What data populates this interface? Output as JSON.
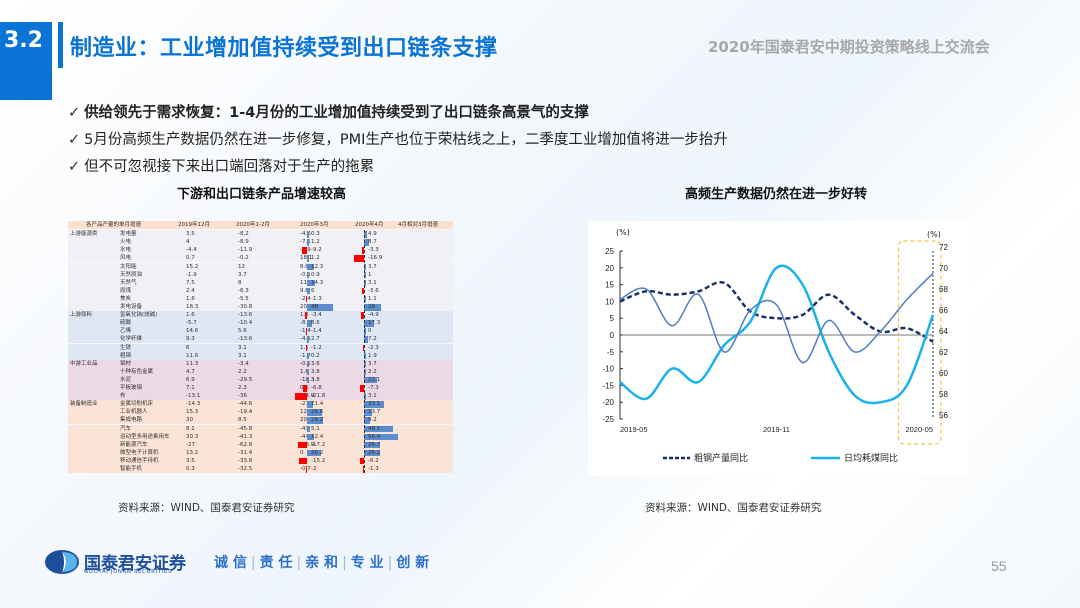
{
  "header": {
    "section_number": "3.2",
    "title": "制造业：工业增加值持续受到出口链条支撑",
    "event": "2020年国泰君安中期投资策略线上交流会"
  },
  "bullets": [
    {
      "check": "✓",
      "text": "供给领先于需求恢复：1-4月份的工业增加值持续受到了出口链条高景气的支撑",
      "bold": true
    },
    {
      "check": "✓",
      "text": "5月份高频生产数据仍然在进一步修复，PMI生产也位于荣枯线之上，二季度工业增加值将进一步抬升",
      "bold": false
    },
    {
      "check": "✓",
      "text": "但不可忽视接下来出口端回落对于生产的拖累",
      "bold": false
    }
  ],
  "left_panel": {
    "title": "下游和出口链条产品增速较高",
    "source": "资料来源：WIND、国泰君安证券研究"
  },
  "right_panel": {
    "title": "高频生产数据仍然在进一步好转",
    "source": "资料来源：WIND、国泰君安证券研究"
  },
  "footer": {
    "logo_cn": "国泰君安证券",
    "logo_en": "GUOTAI JUNAN SECURITIES",
    "slogan": [
      "诚 信",
      "责 任",
      "亲 和",
      "专 业",
      "创 新"
    ],
    "page_number": "55"
  },
  "colors": {
    "brand_blue": "#0a74d6",
    "bar_positive": "#5b8ccc",
    "bar_negative": "#ff0000",
    "steel_line": "#1b2f6b",
    "coal_line": "#19b2ec",
    "pmi_line": "#4a7fc1",
    "highlight_box": "#f5c842"
  },
  "chart_data": [
    {
      "type": "table",
      "title": "下游和出口链条产品增速较高",
      "columns": [
        "各产品产量的单月增速",
        "",
        "2019年12月",
        "2020年1-2月",
        "2020年3月",
        "2020年4月",
        "4月相对3月增速"
      ],
      "groups": [
        {
          "name": "上游能源类",
          "color": "#f0f0f5",
          "rows": [
            [
              "发电量",
              "3.5",
              "-8.2",
              "-4.6",
              "0.3",
              "4.9"
            ],
            [
              "火电",
              "4",
              "-8.9",
              "-7.5",
              "1.2",
              "8.7"
            ],
            [
              "水电",
              "-4.4",
              "-11.9",
              "-5.9",
              "-9.2",
              "-3.3"
            ],
            [
              "风电",
              "0.7",
              "-0.2",
              "18.1",
              "1.2",
              "-16.9"
            ],
            [
              "太阳能",
              "15.2",
              "12",
              "8.6",
              "12.3",
              "3.7"
            ],
            [
              "天然原油",
              "-1.9",
              "3.7",
              "-0.1",
              "0.9",
              "1"
            ],
            [
              "天然气",
              "7.5",
              "8",
              "11.2",
              "14.3",
              "3.1"
            ],
            [
              "原煤",
              "2.4",
              "-6.3",
              "9.6",
              "6",
              "-3.6"
            ],
            [
              "焦炭",
              "1.8",
              "-5.5",
              "-2.4",
              "-1.3",
              "1.1"
            ],
            [
              "发电设备",
              "18.3",
              "-30.8",
              "20",
              "48",
              "28"
            ]
          ]
        },
        {
          "name": "上游原料",
          "color": "#dfe6f4",
          "rows": [
            [
              "氢氧化钠(烧碱)",
              "1.6",
              "-13.6",
              "1.5",
              "-3.4",
              "-4.9"
            ],
            [
              "硫酸",
              "-5.7",
              "-10.4",
              "-8.7",
              "8.6",
              "17.3"
            ],
            [
              "乙烯",
              "14.6",
              "5.6",
              "-1.4",
              "-1.4",
              "0"
            ],
            [
              "化学纤维",
              "9.3",
              "-13.6",
              "-4.5",
              "2.7",
              "7.2"
            ],
            [
              "生铁",
              "6",
              "3.1",
              "1.1",
              "-1.2",
              "-2.3"
            ],
            [
              "粗钢",
              "11.6",
              "3.1",
              "-1.7",
              "0.2",
              "1.9"
            ]
          ]
        },
        {
          "name": "中游工业品",
          "color": "#ecd9e4",
          "rows": [
            [
              "钢材",
              "11.3",
              "-3.4",
              "-0.1",
              "3.6",
              "3.7"
            ],
            [
              "十种有色金属",
              "4.7",
              "2.2",
              "1.6",
              "3.8",
              "2.2"
            ],
            [
              "水泥",
              "6.9",
              "-29.5",
              "-18.3",
              "3.8",
              "22.1"
            ],
            [
              "平板玻璃",
              "7.1",
              "2.3",
              "0.5",
              "-6.8",
              "-7.3"
            ],
            [
              "布",
              "-13.1",
              "-36",
              "-24.9",
              "-21.8",
              "3.1"
            ]
          ]
        },
        {
          "name": "装备制造业",
          "color": "#fbe3d6",
          "rows": [
            [
              "金属切削机床",
              "-14.3",
              "-44.6",
              "-21.7",
              "11.4",
              "33.1"
            ],
            [
              "工业机器人",
              "15.3",
              "-19.4",
              "12.9",
              "26.6",
              "13.7"
            ],
            [
              "集成电路",
              "30",
              "8.5",
              "20",
              "29.2",
              "9.2"
            ],
            [
              "汽车",
              "8.1",
              "-45.8",
              "-43",
              "5.1",
              "48.1"
            ],
            [
              "运动型多用途乘用车",
              "30.3",
              "-41.3",
              "-44",
              "12.4",
              "56.4"
            ],
            [
              "新能源汽车",
              "-27",
              "-62.8",
              "-43.9",
              "-17.2",
              "26.7"
            ],
            [
              "微型电子计算机",
              "13.2",
              "-31.4",
              "0",
              "26.2",
              "26.2"
            ],
            [
              "移动通信手持机",
              "3.5",
              "-33.8",
              "-9",
              "-15.2",
              "-6.2"
            ],
            [
              "智能手机",
              "0.3",
              "-32.5",
              "-0.7",
              "-2",
              "-1.3"
            ]
          ]
        }
      ]
    },
    {
      "type": "line",
      "title": "高频生产数据仍然在进一步好转",
      "x": [
        "2019-05",
        "2019-06",
        "2019-07",
        "2019-08",
        "2019-09",
        "2019-10",
        "2019-11",
        "2019-12",
        "2020-01",
        "2020-02",
        "2020-03",
        "2020-04",
        "2020-05"
      ],
      "x_tick_labels": [
        "2019-05",
        "2019-11",
        "2020-05"
      ],
      "ylabel_left": "(%)",
      "ylabel_right": "(%)",
      "ylim_left": [
        -25,
        25
      ],
      "yticks_left": [
        25,
        20,
        15,
        10,
        5,
        0,
        -5,
        -10,
        -15,
        -20,
        -25
      ],
      "ylim_right": [
        56,
        72
      ],
      "yticks_right": [
        72,
        70,
        68,
        66,
        64,
        62,
        60,
        58,
        56
      ],
      "series": [
        {
          "name": "粗钢产量同比",
          "axis": "left",
          "style": "dashed",
          "color": "#1b2f6b",
          "values": [
            10,
            13,
            12,
            13,
            15.5,
            7,
            5,
            6,
            12,
            6,
            1,
            2,
            -2
          ]
        },
        {
          "name": "日均耗煤同比",
          "axis": "left",
          "style": "solid",
          "color": "#19b2ec",
          "values": [
            -14,
            -19,
            -10,
            -14,
            -3,
            4,
            20,
            15,
            -5,
            -18,
            -20,
            -15,
            6
          ]
        },
        {
          "name": "PMI(未标注)",
          "axis": "right",
          "style": "solid-thin",
          "color": "#4a7fc1",
          "legend": false,
          "values": [
            67,
            68,
            64.5,
            67.5,
            62,
            66,
            66.5,
            61,
            65,
            62,
            64,
            67,
            69.5
          ]
        }
      ],
      "legend": [
        "粗钢产量同比",
        "日均耗煤同比"
      ],
      "legend_position": "bottom",
      "annotations": [
        {
          "type": "highlight_box",
          "range": [
            "2020-04",
            "2020-05"
          ],
          "style": "dashed",
          "color": "#f5c842"
        }
      ]
    }
  ]
}
